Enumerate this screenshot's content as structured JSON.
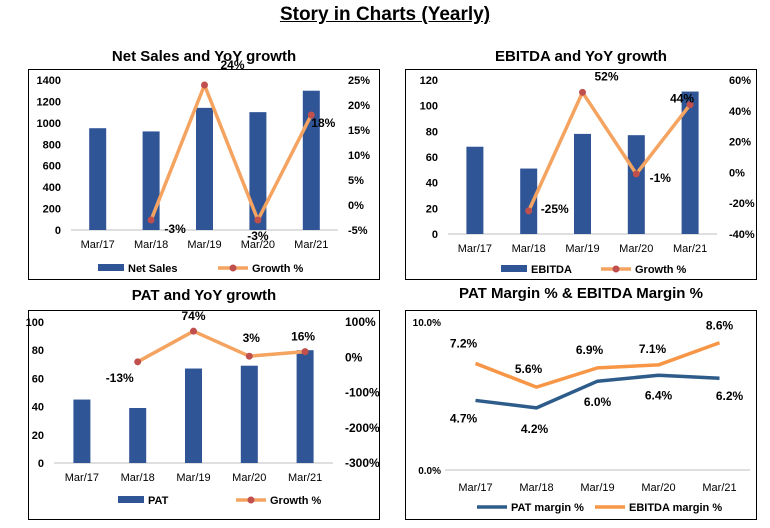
{
  "page_title": "Story in Charts (Yearly)",
  "colors": {
    "bar": "#2F5597",
    "growth_line": "#F4A460",
    "growth_marker": "#C0504D",
    "pat_margin": "#2E5C8A",
    "ebitda_margin": "#F79646"
  },
  "chart_data": [
    {
      "type": "bar",
      "title": "Net Sales and YoY growth",
      "categories": [
        "Mar/17",
        "Mar/18",
        "Mar/19",
        "Mar/20",
        "Mar/21"
      ],
      "series": [
        {
          "name": "Net Sales",
          "type": "bar",
          "axis": "left",
          "values": [
            950,
            920,
            1140,
            1100,
            1300
          ]
        },
        {
          "name": "Growth %",
          "type": "line",
          "axis": "right",
          "values": [
            null,
            -3,
            24,
            -3,
            18
          ],
          "labels": [
            "",
            "-3%",
            "24%",
            "-3%",
            "18%"
          ]
        }
      ],
      "y_left": {
        "min": 0,
        "max": 1400,
        "ticks": [
          "0",
          "200",
          "400",
          "600",
          "800",
          "1000",
          "1200",
          "1400"
        ]
      },
      "y_right": {
        "min": -5,
        "max": 25,
        "ticks": [
          "-5%",
          "0%",
          "5%",
          "10%",
          "15%",
          "20%",
          "25%"
        ]
      },
      "legend": "bottom"
    },
    {
      "type": "bar",
      "title": "EBITDA and YoY growth",
      "categories": [
        "Mar/17",
        "Mar/18",
        "Mar/19",
        "Mar/20",
        "Mar/21"
      ],
      "series": [
        {
          "name": "EBITDA",
          "type": "bar",
          "axis": "left",
          "values": [
            68,
            51,
            78,
            77,
            111
          ]
        },
        {
          "name": "Growth %",
          "type": "line",
          "axis": "right",
          "values": [
            null,
            -25,
            52,
            -1,
            44
          ],
          "labels": [
            "",
            "-25%",
            "52%",
            "-1%",
            "44%"
          ]
        }
      ],
      "y_left": {
        "min": 0,
        "max": 120,
        "ticks": [
          "0",
          "20",
          "40",
          "60",
          "80",
          "100",
          "120"
        ]
      },
      "y_right": {
        "min": -40,
        "max": 60,
        "ticks": [
          "-40%",
          "-20%",
          "0%",
          "20%",
          "40%",
          "60%"
        ]
      },
      "legend": "bottom"
    },
    {
      "type": "bar",
      "title": "PAT and YoY growth",
      "categories": [
        "Mar/17",
        "Mar/18",
        "Mar/19",
        "Mar/20",
        "Mar/21"
      ],
      "series": [
        {
          "name": "PAT",
          "type": "bar",
          "axis": "left",
          "values": [
            45,
            39,
            67,
            69,
            80
          ]
        },
        {
          "name": "Growth %",
          "type": "line",
          "axis": "right",
          "values": [
            null,
            -13,
            74,
            3,
            16
          ],
          "labels": [
            "",
            "-13%",
            "74%",
            "3%",
            "16%"
          ]
        }
      ],
      "y_left": {
        "min": 0,
        "max": 100,
        "ticks": [
          "0",
          "20",
          "40",
          "60",
          "80",
          "100"
        ]
      },
      "y_right": {
        "min": -300,
        "max": 100,
        "ticks": [
          "-300%",
          "-200%",
          "-100%",
          "0%",
          "100%"
        ]
      },
      "legend": "bottom"
    },
    {
      "type": "line",
      "title": "PAT Margin % & EBITDA Margin %",
      "categories": [
        "Mar/17",
        "Mar/18",
        "Mar/19",
        "Mar/20",
        "Mar/21"
      ],
      "series": [
        {
          "name": "PAT margin %",
          "values": [
            4.7,
            4.2,
            6.0,
            6.4,
            6.2
          ],
          "labels": [
            "4.7%",
            "4.2%",
            "6.0%",
            "6.4%",
            "6.2%"
          ]
        },
        {
          "name": "EBITDA margin %",
          "values": [
            7.2,
            5.6,
            6.9,
            7.1,
            8.6
          ],
          "labels": [
            "7.2%",
            "5.6%",
            "6.9%",
            "7.1%",
            "8.6%"
          ]
        }
      ],
      "y_left": {
        "min": 0,
        "max": 10,
        "ticks": [
          "0.0%",
          "10.0%"
        ]
      },
      "legend": "bottom"
    }
  ]
}
